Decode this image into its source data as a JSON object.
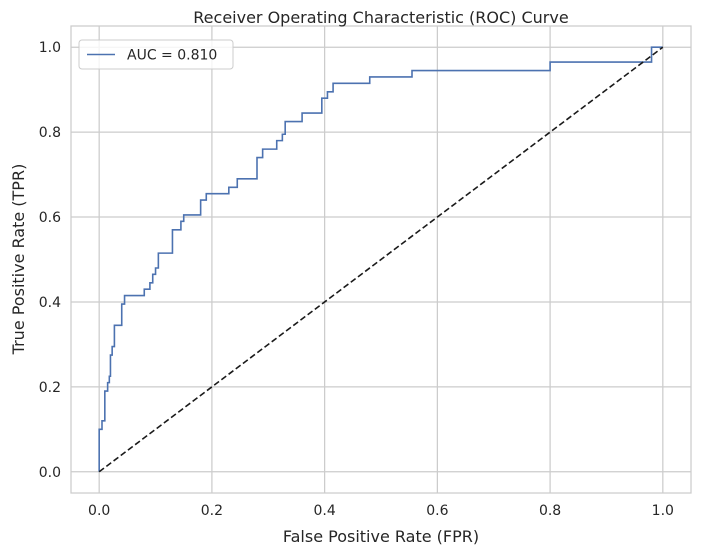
{
  "chart_data": {
    "type": "line",
    "title": "Receiver Operating Characteristic (ROC) Curve",
    "xlabel": "False Positive Rate (FPR)",
    "ylabel": "True Positive Rate (TPR)",
    "xlim": [
      -0.05,
      1.05
    ],
    "ylim": [
      -0.05,
      1.05
    ],
    "xticks": [
      0.0,
      0.2,
      0.4,
      0.6,
      0.8,
      1.0
    ],
    "yticks": [
      0.0,
      0.2,
      0.4,
      0.6,
      0.8,
      1.0
    ],
    "xtick_labels": [
      "0.0",
      "0.2",
      "0.4",
      "0.6",
      "0.8",
      "1.0"
    ],
    "ytick_labels": [
      "0.0",
      "0.2",
      "0.4",
      "0.6",
      "0.8",
      "1.0"
    ],
    "grid": true,
    "legend_position": "top-left",
    "series": [
      {
        "name": "AUC = 0.810",
        "color": "#4c72b0",
        "style": "solid",
        "x": [
          0.0,
          0.0,
          0.005,
          0.005,
          0.01,
          0.01,
          0.015,
          0.015,
          0.018,
          0.018,
          0.02,
          0.02,
          0.023,
          0.023,
          0.027,
          0.027,
          0.04,
          0.04,
          0.045,
          0.045,
          0.08,
          0.08,
          0.09,
          0.09,
          0.095,
          0.095,
          0.1,
          0.1,
          0.105,
          0.105,
          0.13,
          0.13,
          0.145,
          0.145,
          0.15,
          0.15,
          0.18,
          0.18,
          0.19,
          0.19,
          0.23,
          0.23,
          0.245,
          0.245,
          0.28,
          0.28,
          0.29,
          0.29,
          0.315,
          0.315,
          0.325,
          0.325,
          0.33,
          0.33,
          0.36,
          0.36,
          0.395,
          0.395,
          0.405,
          0.405,
          0.415,
          0.415,
          0.435,
          0.435,
          0.48,
          0.48,
          0.555,
          0.555,
          0.8,
          0.8,
          0.98,
          0.98,
          1.0
        ],
        "y": [
          0.0,
          0.1,
          0.1,
          0.12,
          0.12,
          0.19,
          0.19,
          0.21,
          0.21,
          0.225,
          0.225,
          0.275,
          0.275,
          0.295,
          0.295,
          0.345,
          0.345,
          0.395,
          0.395,
          0.415,
          0.415,
          0.43,
          0.43,
          0.445,
          0.445,
          0.465,
          0.465,
          0.48,
          0.48,
          0.515,
          0.515,
          0.57,
          0.57,
          0.59,
          0.59,
          0.605,
          0.605,
          0.64,
          0.64,
          0.655,
          0.655,
          0.67,
          0.67,
          0.69,
          0.69,
          0.74,
          0.74,
          0.76,
          0.76,
          0.78,
          0.78,
          0.795,
          0.795,
          0.825,
          0.825,
          0.845,
          0.845,
          0.88,
          0.88,
          0.895,
          0.895,
          0.915,
          0.915,
          0.915,
          0.915,
          0.93,
          0.93,
          0.945,
          0.945,
          0.965,
          0.965,
          1.0,
          1.0
        ]
      },
      {
        "name": "",
        "color": "#1a1a1a",
        "style": "dashed",
        "x": [
          0.0,
          1.0
        ],
        "y": [
          0.0,
          1.0
        ]
      }
    ]
  }
}
